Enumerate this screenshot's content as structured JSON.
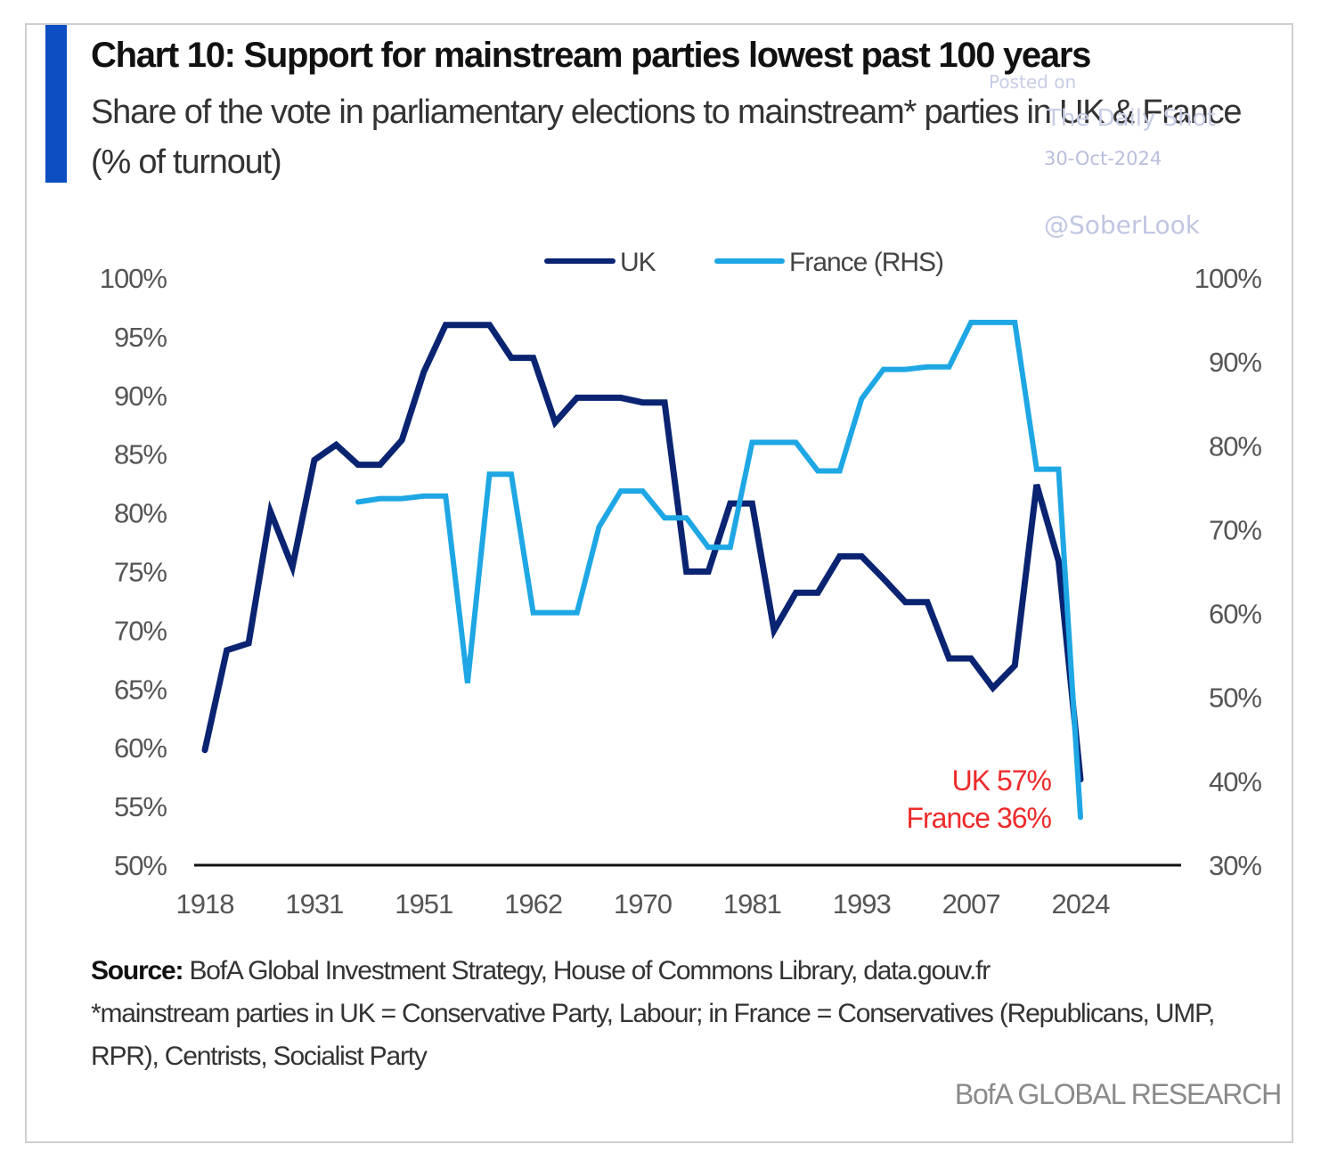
{
  "header": {
    "title": "Chart 10: Support for mainstream parties lowest past 100 years",
    "subtitle": "Share of the vote in parliamentary elections to mainstream* parties in UK & France (% of turnout)"
  },
  "watermark": {
    "posted_on": "Posted on",
    "publication": "The Daily Shot",
    "date": "30-Oct-2024",
    "handle": "@SoberLook"
  },
  "footer": {
    "source_label": "Source:",
    "source_text": "BofA Global Investment Strategy, House of Commons Library, data.gouv.fr",
    "footnote": "*mainstream parties in UK = Conservative Party, Labour; in France = Conservatives (Republicans, UMP, RPR), Centrists, Socialist Party",
    "brand": "BofA GLOBAL RESEARCH"
  },
  "chart_data": {
    "type": "line",
    "title": "Chart 10: Support for mainstream parties lowest past 100 years",
    "subtitle": "Share of the vote in parliamentary elections to mainstream* parties in UK & France (% of turnout)",
    "xlabel": "",
    "x_tick_labels": [
      "1918",
      "1931",
      "1951",
      "1962",
      "1970",
      "1981",
      "1993",
      "2007",
      "2024"
    ],
    "x_tick_index": [
      0,
      5,
      10,
      15,
      20,
      25,
      30,
      35,
      40
    ],
    "x_points": 41,
    "left_axis": {
      "label": "UK",
      "ylim": [
        50,
        100
      ],
      "ticks": [
        50,
        55,
        60,
        65,
        70,
        75,
        80,
        85,
        90,
        95,
        100
      ],
      "tick_labels": [
        "50%",
        "55%",
        "60%",
        "65%",
        "70%",
        "75%",
        "80%",
        "85%",
        "90%",
        "95%",
        "100%"
      ]
    },
    "right_axis": {
      "label": "France (RHS)",
      "ylim": [
        30,
        100
      ],
      "ticks": [
        30,
        40,
        50,
        60,
        70,
        80,
        90,
        100
      ],
      "tick_labels": [
        "30%",
        "40%",
        "50%",
        "60%",
        "70%",
        "80%",
        "90%",
        "100%"
      ]
    },
    "grid": false,
    "legend": {
      "position": "top-center"
    },
    "series": [
      {
        "name": "UK",
        "axis": "left",
        "color": "#0a2472",
        "start_index": 0,
        "values": [
          59.8,
          68.3,
          68.9,
          80.1,
          75.4,
          84.5,
          85.8,
          84.1,
          84.1,
          86.2,
          92.0,
          96.0,
          96.0,
          96.0,
          93.2,
          93.2,
          87.7,
          89.8,
          89.8,
          89.8,
          89.4,
          89.4,
          75.0,
          75.0,
          80.8,
          80.8,
          70.0,
          73.2,
          73.2,
          76.3,
          76.3,
          74.4,
          72.4,
          72.4,
          67.6,
          67.6,
          65.1,
          67.0,
          82.4,
          75.9,
          57.3
        ]
      },
      {
        "name": "France (RHS)",
        "axis": "right",
        "color": "#1ea7e4",
        "start_index": 7,
        "values": [
          73.3,
          73.7,
          73.7,
          74.0,
          74.0,
          51.7,
          76.6,
          76.6,
          60.1,
          60.1,
          60.1,
          70.3,
          74.6,
          74.6,
          71.4,
          71.4,
          67.9,
          67.9,
          80.4,
          80.4,
          80.4,
          77.0,
          77.0,
          85.6,
          89.1,
          89.1,
          89.4,
          89.4,
          94.7,
          94.7,
          94.7,
          77.2,
          77.2,
          35.7
        ]
      }
    ],
    "annotations": [
      {
        "text": "UK 57%",
        "color": "#ee2a2a"
      },
      {
        "text": "France 36%",
        "color": "#ee2a2a"
      }
    ]
  }
}
